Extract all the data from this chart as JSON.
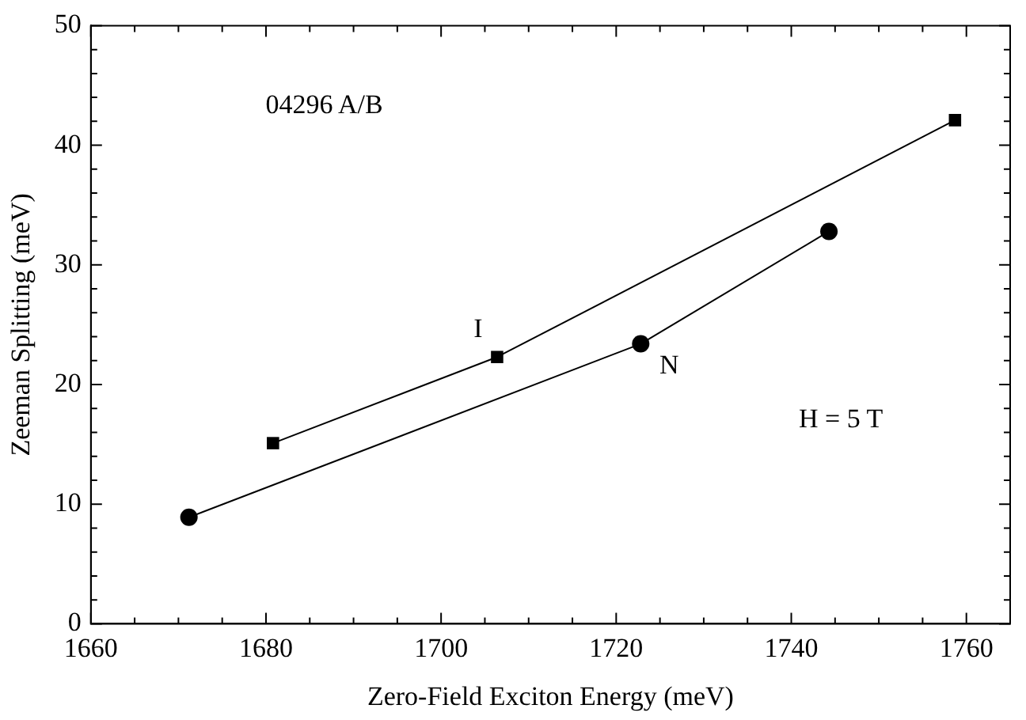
{
  "chart_data": {
    "type": "line",
    "xlabel": "Zero-Field Exciton Energy (meV)",
    "ylabel": "Zeeman Splitting (meV)",
    "xlim": [
      1660,
      1765
    ],
    "xticks": [
      1660,
      1680,
      1700,
      1720,
      1740,
      1760
    ],
    "ylim": [
      0,
      50
    ],
    "yticks": [
      0,
      10,
      20,
      30,
      40,
      50
    ],
    "grid": false,
    "legend": false,
    "series": [
      {
        "color": "#000000",
        "marker": "square",
        "x": [
          1680.8,
          1706.4,
          1758.7
        ],
        "values": [
          15.1,
          22.3,
          42.1
        ]
      },
      {
        "color": "#000000",
        "marker": "circle",
        "x": [
          1671.2,
          1722.8,
          1744.3
        ],
        "values": [
          8.9,
          23.4,
          32.8
        ]
      }
    ],
    "annotations": [
      "04296 A/B",
      "H = 5 T",
      {
        "text": "I",
        "x": 1706.4,
        "y": 22.3
      },
      {
        "text": "N",
        "x": 1722.8,
        "y": 23.4
      }
    ]
  }
}
